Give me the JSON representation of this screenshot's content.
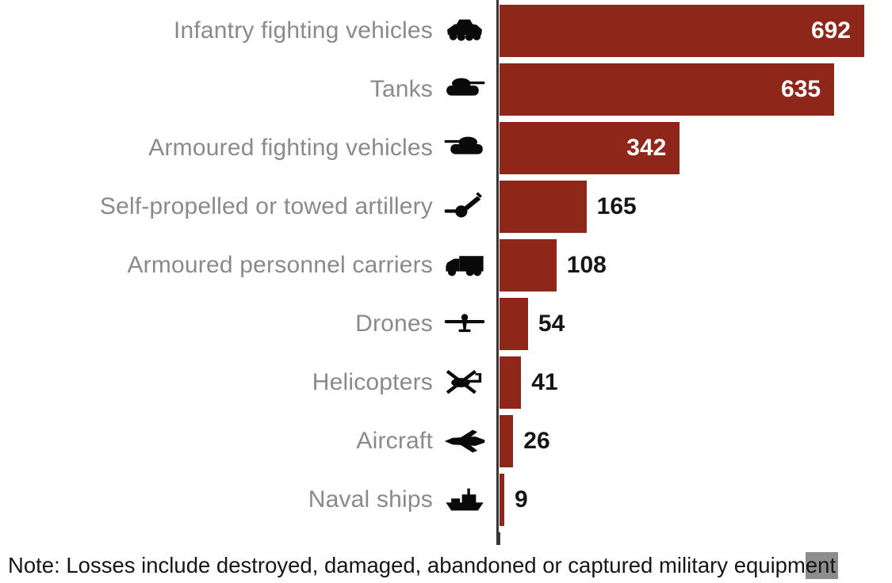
{
  "chart_data": {
    "type": "bar",
    "orientation": "horizontal",
    "title": "",
    "xlabel": "",
    "ylabel": "",
    "max_value": 692,
    "xlim": [
      0,
      700
    ],
    "grid": false,
    "legend": "none",
    "bar_color": "#8e261a",
    "categories": [
      "Infantry fighting vehicles",
      "Tanks",
      "Armoured fighting vehicles",
      "Self-propelled or towed artillery",
      "Armoured personnel carriers",
      "Drones",
      "Helicopters",
      "Aircraft",
      "Naval ships"
    ],
    "values": [
      692,
      635,
      342,
      165,
      108,
      54,
      41,
      26,
      9
    ],
    "icons": [
      "ifv-icon",
      "tank-icon",
      "afv-icon",
      "artillery-icon",
      "apc-truck-icon",
      "drone-icon",
      "helicopter-icon",
      "fighter-jet-icon",
      "naval-ship-icon"
    ],
    "value_label_positions": [
      "inside",
      "inside",
      "inside",
      "outside",
      "outside",
      "outside",
      "outside",
      "outside",
      "outside"
    ]
  },
  "note": {
    "full_text": "Note: Losses include destroyed, damaged, abandoned or captured military equipment",
    "text_before_highlight": "Note: Losses include destroyed, damaged, abandoned or captured military equipm",
    "highlighted_text": "ent"
  },
  "colors": {
    "bar": "#8e261a",
    "category_label": "#8a8a8a",
    "value_inside": "#ffffff",
    "value_outside": "#161616",
    "axis_line": "#3a3532",
    "note_text": "#161616",
    "note_highlight_bg": "#8d8d8d",
    "background": "#ffffff",
    "icon": "#0a0a0a"
  }
}
